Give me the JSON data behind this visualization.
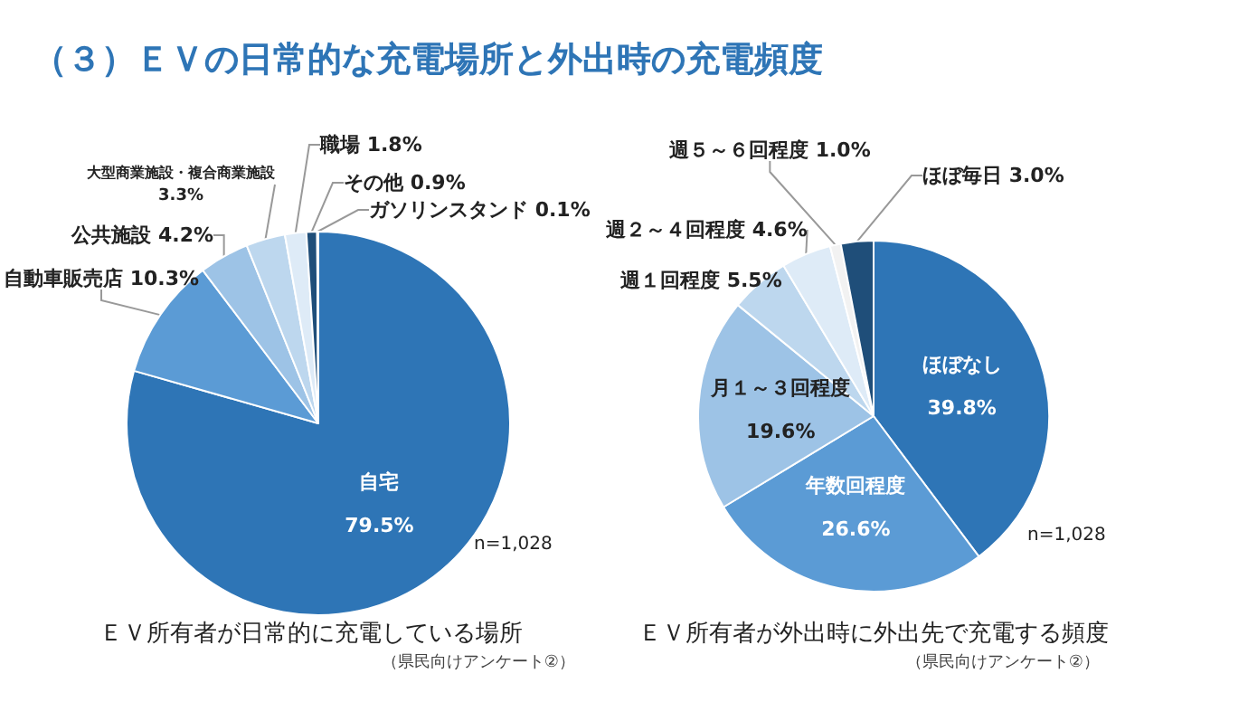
{
  "chart_data": [
    {
      "type": "pie",
      "title": "ＥＶ所有者が日常的に充電している場所",
      "annotations": [
        "（３）ＥＶの日常的な充電場所と外出時の充電頻度",
        "n=1,028",
        "（県民向けアンケート②）"
      ],
      "legend": false,
      "categories": [
        "自宅",
        "自動車販売店",
        "公共施設",
        "大型商業施設・複合商業施設",
        "職場",
        "その他",
        "ガソリンスタンド"
      ],
      "values": [
        79.5,
        10.3,
        4.2,
        3.3,
        1.8,
        0.9,
        0.1
      ],
      "value_labels": [
        "79.5%",
        "10.3%",
        "4.2%",
        "3.3%",
        "1.8%",
        "0.9%",
        "0.1%"
      ],
      "colors": [
        "#2e75b6",
        "#5b9bd5",
        "#9dc3e6",
        "#bdd7ee",
        "#deebf7",
        "#1f4e79",
        "#203864"
      ]
    },
    {
      "type": "pie",
      "title": "ＥＶ所有者が外出時に外出先で充電する頻度",
      "annotations": [
        "n=1,028",
        "（県民向けアンケート②）"
      ],
      "legend": false,
      "categories": [
        "ほぼなし",
        "年数回程度",
        "月１～３回程度",
        "週１回程度",
        "週２～４回程度",
        "週５～６回程度",
        "ほぼ毎日"
      ],
      "values": [
        39.8,
        26.6,
        19.6,
        5.5,
        4.6,
        1.0,
        3.0
      ],
      "value_labels": [
        "39.8%",
        "26.6%",
        "19.6%",
        "5.5%",
        "4.6%",
        "1.0%",
        "3.0%"
      ],
      "colors": [
        "#2e75b6",
        "#5b9bd5",
        "#9dc3e6",
        "#bdd7ee",
        "#deebf7",
        "#f2f2f2",
        "#1f4e79"
      ]
    }
  ]
}
